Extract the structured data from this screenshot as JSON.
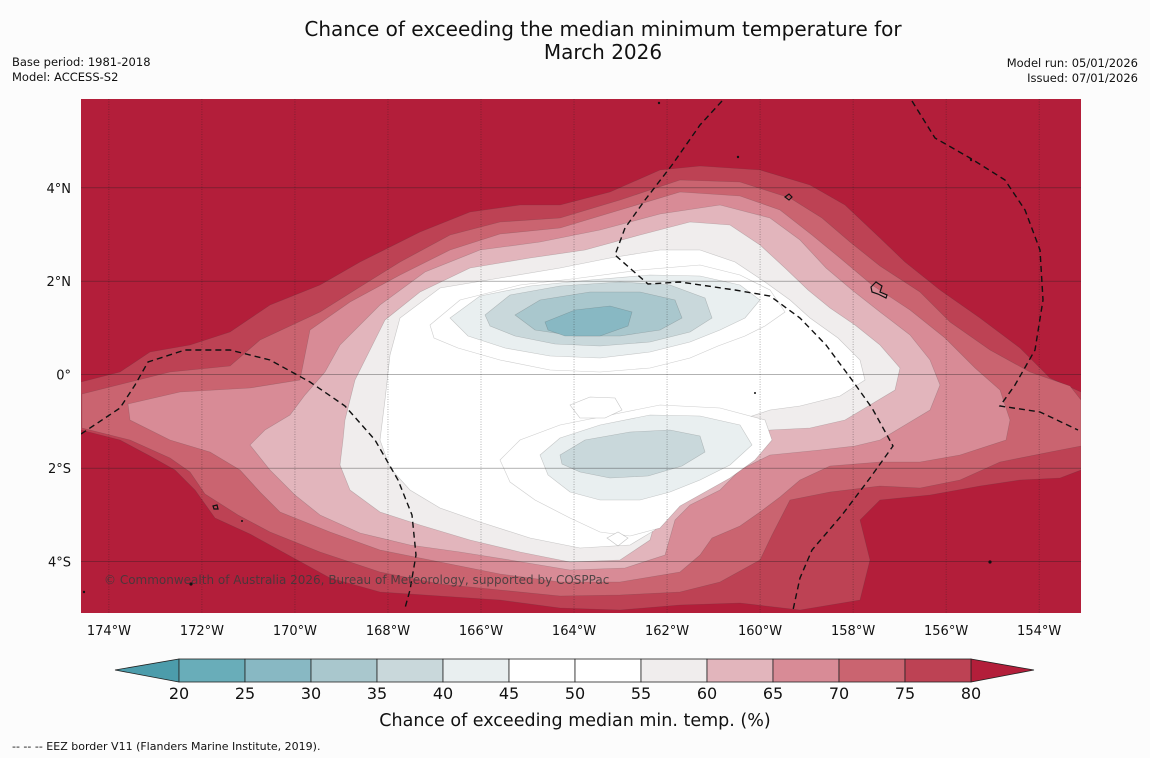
{
  "title": {
    "line1": "Chance of exceeding the median minimum temperature for",
    "line2": "March 2026"
  },
  "meta_left": {
    "base_period": "Base period: 1981-2018",
    "model": "Model: ACCESS-S2"
  },
  "meta_right": {
    "model_run": "Model run: 05/01/2026",
    "issued": "Issued: 07/01/2026"
  },
  "map": {
    "lat_labels": [
      "4°N",
      "2°N",
      "0°",
      "2°S",
      "4°S"
    ],
    "lat_values": [
      4,
      2,
      0,
      -2,
      -4
    ],
    "lon_labels": [
      "174°W",
      "172°W",
      "170°W",
      "168°W",
      "166°W",
      "164°W",
      "162°W",
      "160°W",
      "158°W",
      "156°W",
      "154°W"
    ],
    "lon_values": [
      -174,
      -172,
      -170,
      -168,
      -166,
      -164,
      -162,
      -160,
      -158,
      -156,
      -154
    ],
    "lon_range": [
      -174.6,
      -153.1
    ],
    "lat_range": [
      -5.1,
      5.9
    ],
    "copyright": "© Commonwealth of Australia 2026, Bureau of Meteorology, supported by COSPPac",
    "background_color": "#b31e3a"
  },
  "colorbar": {
    "ticks": [
      "20",
      "25",
      "30",
      "35",
      "40",
      "45",
      "50",
      "55",
      "60",
      "65",
      "70",
      "75",
      "80"
    ],
    "colors": [
      "#69adb9",
      "#88b8c3",
      "#a9c7cd",
      "#c9d8db",
      "#e9eff0",
      "#ffffff",
      "#ffffff",
      "#f0eded",
      "#e2b5bc",
      "#d88b96",
      "#ca6470",
      "#bd4254"
    ],
    "under_color": "#4c9cab",
    "over_color": "#b31e3a",
    "label": "Chance of exceeding median min. temp. (%)"
  },
  "footnote": "--  --  -- EEZ border V11 (Flanders Marine Institute, 2019)."
}
